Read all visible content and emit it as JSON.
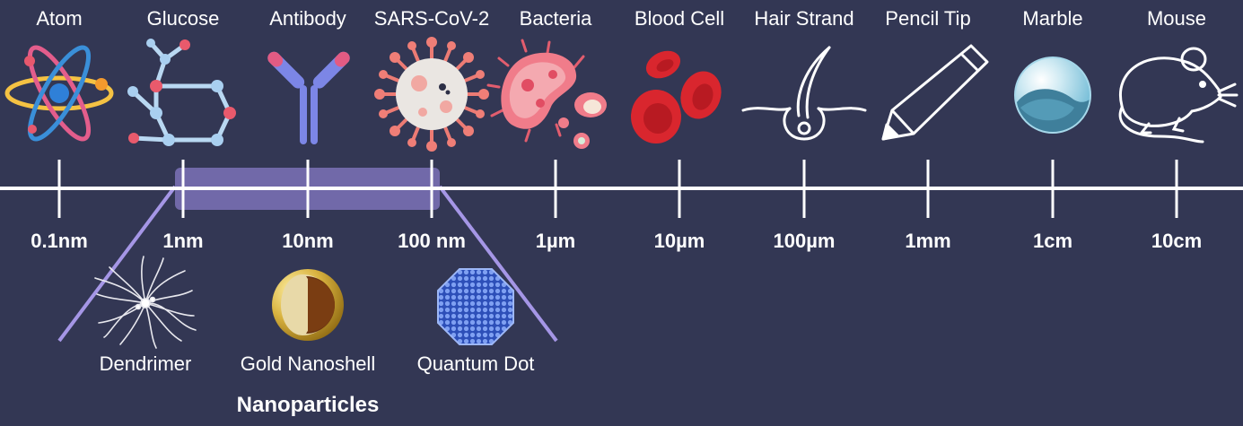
{
  "items": [
    {
      "name": "Atom",
      "icon": "atom-icon"
    },
    {
      "name": "Glucose",
      "icon": "molecule-icon"
    },
    {
      "name": "Antibody",
      "icon": "antibody-icon"
    },
    {
      "name": "SARS-CoV-2",
      "icon": "virus-icon"
    },
    {
      "name": "Bacteria",
      "icon": "bacteria-icon"
    },
    {
      "name": "Blood Cell",
      "icon": "blood-cell-icon"
    },
    {
      "name": "Hair Strand",
      "icon": "hair-follicle-icon"
    },
    {
      "name": "Pencil Tip",
      "icon": "pencil-icon"
    },
    {
      "name": "Marble",
      "icon": "marble-icon"
    },
    {
      "name": "Mouse",
      "icon": "mouse-icon"
    }
  ],
  "scale_labels": [
    "0.1nm",
    "1nm",
    "10nm",
    "100 nm",
    "1µm",
    "10µm",
    "100µm",
    "1mm",
    "1cm",
    "10cm"
  ],
  "nanoparticles": {
    "group_label": "Nanoparticles",
    "items": [
      {
        "name": "Dendrimer",
        "icon": "dendrimer-icon"
      },
      {
        "name": "Gold Nanoshell",
        "icon": "gold-nanoshell-icon"
      },
      {
        "name": "Quantum Dot",
        "icon": "quantum-dot-icon"
      }
    ]
  },
  "colors": {
    "background": "#333754",
    "axis": "#ffffff",
    "nano_band": "#7d72b8",
    "nano_lines": "#a596e6"
  }
}
